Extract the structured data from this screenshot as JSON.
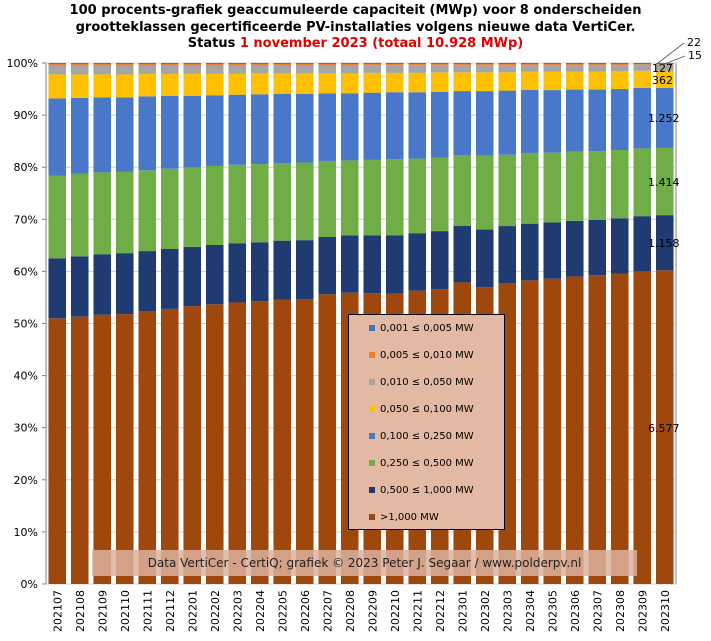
{
  "title": {
    "line1": "100 procents-grafiek geaccumuleerde capaciteit (MWp) voor 8 onderscheiden",
    "line2": "grootteklassen gecertificeerde PV-installaties volgens nieuwe data VertiCer.",
    "line3_prefix": "Status",
    "line3_highlight": "1 november 2023 (totaal 10.928 MWp)"
  },
  "credit": "Data VertiCer  - CertiQ; grafiek © 2023 Peter J. Segaar / www.polderpv.nl",
  "colors": {
    "s1": "#4472c4",
    "s2": "#ed7d31",
    "s3": "#a5a5a5",
    "s4": "#ffc000",
    "s5": "#4a78c9",
    "s6": "#70ad47",
    "s7": "#203a72",
    "s8": "#9e480e",
    "highlight": "#e00000"
  },
  "chart_data": {
    "type": "bar",
    "stacked": "percent",
    "title": "100 procents-grafiek geaccumuleerde capaciteit (MWp) voor 8 onderscheiden grootteklassen gecertificeerde PV-installaties volgens nieuwe data VertiCer. Status 1 november 2023 (totaal 10.928 MWp)",
    "xlabel": "",
    "ylabel": "",
    "ylim": [
      0,
      100
    ],
    "y_ticks": [
      "0%",
      "10%",
      "20%",
      "30%",
      "40%",
      "50%",
      "60%",
      "70%",
      "80%",
      "90%",
      "100%"
    ],
    "grid": true,
    "legend_position": "center-right",
    "categories": [
      "202107",
      "202108",
      "202109",
      "202110",
      "202111",
      "202112",
      "202201",
      "202202",
      "202203",
      "202204",
      "202205",
      "202206",
      "202207",
      "202208",
      "202209",
      "202210",
      "202211",
      "202212",
      "202301",
      "202302",
      "202303",
      "202304",
      "202305",
      "202306",
      "202307",
      "202308",
      "202309",
      "202310"
    ],
    "series": [
      {
        "name": "0,001 ≤  0,005 MW",
        "color": "#4472c4",
        "values": [
          0.2,
          0.2,
          0.2,
          0.2,
          0.2,
          0.2,
          0.2,
          0.2,
          0.2,
          0.2,
          0.2,
          0.2,
          0.2,
          0.2,
          0.2,
          0.2,
          0.2,
          0.2,
          0.2,
          0.2,
          0.2,
          0.2,
          0.2,
          0.2,
          0.2,
          0.2,
          0.2,
          0.2
        ]
      },
      {
        "name": "0,005 ≤  0,010 MW",
        "color": "#ed7d31",
        "values": [
          0.3,
          0.3,
          0.3,
          0.3,
          0.3,
          0.3,
          0.3,
          0.3,
          0.3,
          0.3,
          0.3,
          0.3,
          0.3,
          0.3,
          0.2,
          0.2,
          0.2,
          0.2,
          0.2,
          0.2,
          0.2,
          0.2,
          0.2,
          0.2,
          0.2,
          0.2,
          0.1,
          0.1
        ]
      },
      {
        "name": "0,010 ≤  0,050 MW",
        "color": "#a5a5a5",
        "values": [
          1.7,
          1.7,
          1.7,
          1.7,
          1.6,
          1.6,
          1.6,
          1.6,
          1.6,
          1.5,
          1.5,
          1.5,
          1.5,
          1.5,
          1.5,
          1.5,
          1.5,
          1.4,
          1.4,
          1.4,
          1.4,
          1.3,
          1.3,
          1.3,
          1.3,
          1.2,
          1.2,
          1.2
        ]
      },
      {
        "name": "0,050 ≤  0,100 MW",
        "color": "#ffc000",
        "values": [
          4.6,
          4.5,
          4.4,
          4.4,
          4.3,
          4.2,
          4.2,
          4.1,
          4.0,
          4.0,
          3.9,
          3.9,
          3.8,
          3.8,
          3.8,
          3.7,
          3.7,
          3.7,
          3.6,
          3.6,
          3.5,
          3.5,
          3.5,
          3.4,
          3.4,
          3.4,
          3.3,
          3.3
        ]
      },
      {
        "name": "0,100 ≤  0,250 MW",
        "color": "#4a78c9",
        "values": [
          14.8,
          14.5,
          14.4,
          14.3,
          14.2,
          14.0,
          13.8,
          13.6,
          13.5,
          13.4,
          13.3,
          13.2,
          13.0,
          12.9,
          12.9,
          12.8,
          12.7,
          12.6,
          12.3,
          12.4,
          12.3,
          12.1,
          12.0,
          11.9,
          11.8,
          11.7,
          11.6,
          11.5
        ]
      },
      {
        "name": "0,250 ≤  0,500 MW",
        "color": "#70ad47",
        "values": [
          15.9,
          15.9,
          15.7,
          15.6,
          15.5,
          15.4,
          15.3,
          15.2,
          15.1,
          15.0,
          14.9,
          14.9,
          14.6,
          14.4,
          14.5,
          14.6,
          14.3,
          14.1,
          13.6,
          14.2,
          13.7,
          13.6,
          13.4,
          13.3,
          13.2,
          13.1,
          13.0,
          12.9
        ]
      },
      {
        "name": "0,500 ≤  1,000 MW",
        "color": "#203a72",
        "values": [
          11.5,
          11.6,
          11.6,
          11.7,
          11.5,
          11.5,
          11.4,
          11.4,
          11.4,
          11.3,
          11.3,
          11.3,
          11.0,
          11.0,
          11.1,
          11.2,
          11.0,
          11.1,
          10.9,
          11.1,
          11.0,
          10.9,
          10.8,
          10.7,
          10.6,
          10.6,
          10.6,
          10.6
        ]
      },
      {
        "name": ">1,000 MW",
        "color": "#9e480e",
        "values": [
          51.0,
          51.3,
          51.7,
          51.8,
          52.4,
          52.8,
          53.5,
          53.8,
          54.2,
          54.3,
          54.6,
          54.7,
          55.6,
          55.9,
          55.8,
          55.6,
          56.2,
          56.5,
          58.0,
          57.0,
          57.7,
          58.4,
          58.6,
          59.0,
          59.3,
          59.6,
          60.0,
          60.2
        ]
      }
    ],
    "data_labels": [
      "22",
      "15",
      "127",
      "362",
      "1.252",
      "1.414",
      "1.158",
      "6.577"
    ]
  }
}
